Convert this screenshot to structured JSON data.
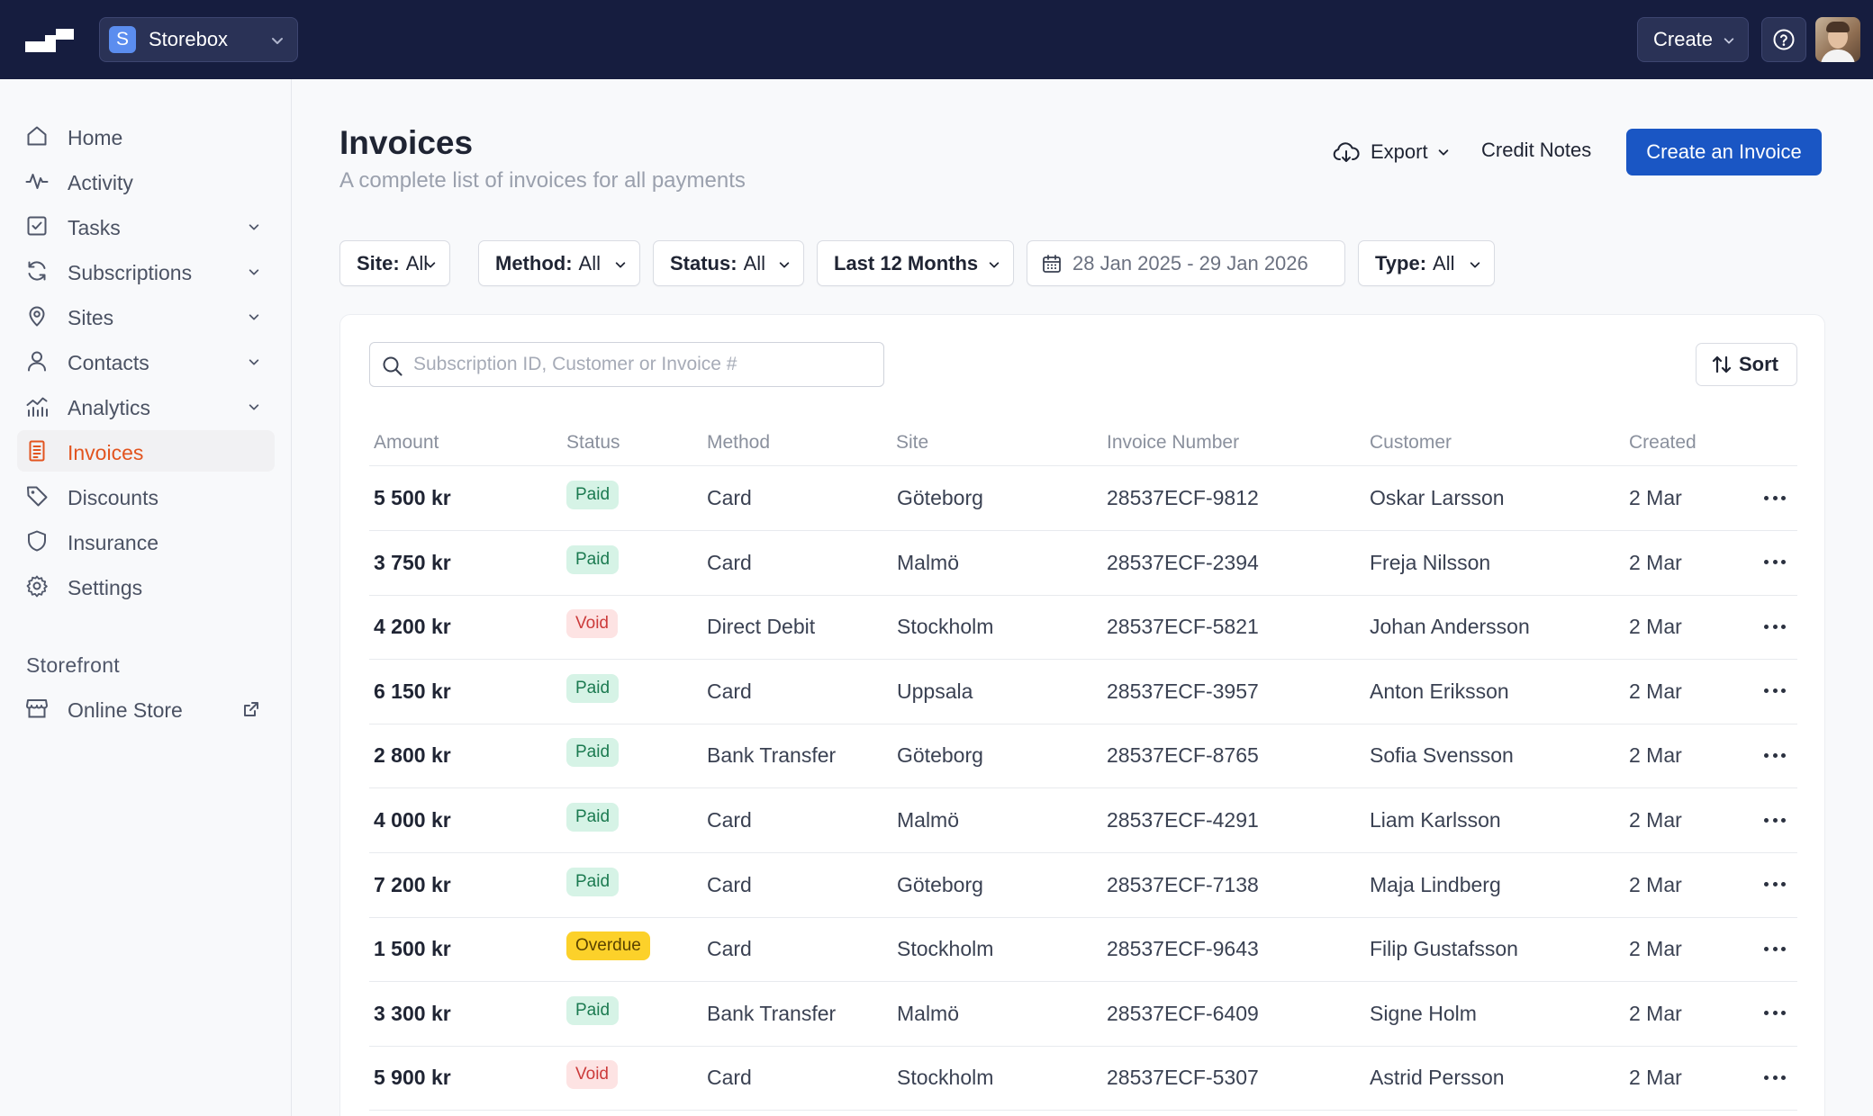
{
  "header": {
    "store_badge": "S",
    "store_name": "Storebox",
    "create_label": "Create"
  },
  "sidebar": {
    "items": [
      {
        "label": "Home",
        "icon": "home-icon"
      },
      {
        "label": "Activity",
        "icon": "activity-icon"
      },
      {
        "label": "Tasks",
        "icon": "tasks-icon"
      },
      {
        "label": "Subscriptions",
        "icon": "subscriptions-icon"
      },
      {
        "label": "Sites",
        "icon": "sites-icon"
      },
      {
        "label": "Contacts",
        "icon": "contacts-icon"
      },
      {
        "label": "Analytics",
        "icon": "analytics-icon"
      },
      {
        "label": "Invoices",
        "icon": "invoices-icon"
      },
      {
        "label": "Discounts",
        "icon": "discounts-icon"
      },
      {
        "label": "Insurance",
        "icon": "insurance-icon"
      },
      {
        "label": "Settings",
        "icon": "settings-icon"
      }
    ],
    "storefront_title": "Storefront",
    "online_store": "Online Store"
  },
  "page": {
    "title": "Invoices",
    "subtitle": "A complete list of invoices for all payments",
    "export_label": "Export",
    "credit_notes_label": "Credit Notes",
    "create_invoice_label": "Create an Invoice"
  },
  "filters": {
    "site": {
      "key": "Site:",
      "value": "All"
    },
    "method": {
      "key": "Method:",
      "value": "All"
    },
    "status": {
      "key": "Status:",
      "value": "All"
    },
    "period": "Last 12 Months",
    "date_range": "28 Jan 2025 - 29 Jan 2026",
    "type": {
      "key": "Type:",
      "value": "All"
    }
  },
  "search": {
    "placeholder": "Subscription ID, Customer or Invoice #"
  },
  "sort_label": "Sort",
  "table": {
    "columns": [
      "Amount",
      "Status",
      "Method",
      "Site",
      "Invoice Number",
      "Customer",
      "Created"
    ],
    "rows": [
      {
        "amount": "5 500 kr",
        "status": "Paid",
        "method": "Card",
        "site": "Göteborg",
        "invoice": "28537ECF-9812",
        "customer": "Oskar Larsson",
        "created": "2 Mar"
      },
      {
        "amount": "3 750 kr",
        "status": "Paid",
        "method": "Card",
        "site": "Malmö",
        "invoice": "28537ECF-2394",
        "customer": "Freja Nilsson",
        "created": "2 Mar"
      },
      {
        "amount": "4 200 kr",
        "status": "Void",
        "method": "Direct Debit",
        "site": "Stockholm",
        "invoice": "28537ECF-5821",
        "customer": "Johan Andersson",
        "created": "2 Mar"
      },
      {
        "amount": "6 150 kr",
        "status": "Paid",
        "method": "Card",
        "site": "Uppsala",
        "invoice": "28537ECF-3957",
        "customer": "Anton Eriksson",
        "created": "2 Mar"
      },
      {
        "amount": "2 800 kr",
        "status": "Paid",
        "method": "Bank Transfer",
        "site": "Göteborg",
        "invoice": "28537ECF-8765",
        "customer": "Sofia Svensson",
        "created": "2 Mar"
      },
      {
        "amount": "4 000 kr",
        "status": "Paid",
        "method": "Card",
        "site": "Malmö",
        "invoice": "28537ECF-4291",
        "customer": "Liam Karlsson",
        "created": "2 Mar"
      },
      {
        "amount": "7 200 kr",
        "status": "Paid",
        "method": "Card",
        "site": "Göteborg",
        "invoice": "28537ECF-7138",
        "customer": "Maja Lindberg",
        "created": "2 Mar"
      },
      {
        "amount": "1 500 kr",
        "status": "Overdue",
        "method": "Card",
        "site": "Stockholm",
        "invoice": "28537ECF-9643",
        "customer": "Filip Gustafsson",
        "created": "2 Mar"
      },
      {
        "amount": "3 300 kr",
        "status": "Paid",
        "method": "Bank Transfer",
        "site": "Malmö",
        "invoice": "28537ECF-6409",
        "customer": "Signe Holm",
        "created": "2 Mar"
      },
      {
        "amount": "5 900 kr",
        "status": "Void",
        "method": "Card",
        "site": "Stockholm",
        "invoice": "28537ECF-5307",
        "customer": "Astrid Persson",
        "created": "2 Mar"
      }
    ]
  },
  "colors": {
    "topbar": "#161d3f",
    "primary": "#1a56c4",
    "active_nav": "#e2541f",
    "paid_bg": "#d6f3e6",
    "void_bg": "#fde3e3",
    "overdue_bg": "#fcd12a"
  }
}
